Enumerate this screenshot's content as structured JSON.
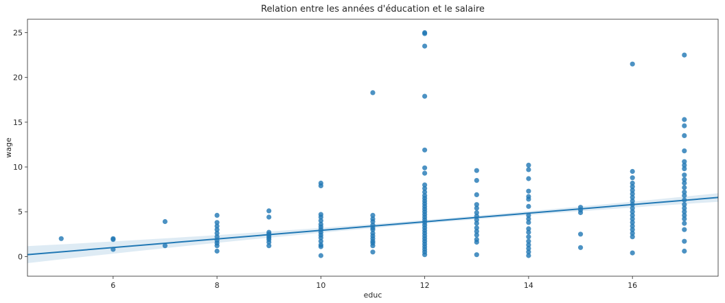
{
  "chart_data": {
    "type": "scatter",
    "title": "Relation entre les années d'éducation et le salaire",
    "xlabel": "educ",
    "ylabel": "wage",
    "xlim": [
      4.35,
      17.65
    ],
    "ylim": [
      -2.2,
      26.5
    ],
    "xticks": [
      6,
      8,
      10,
      12,
      14,
      16
    ],
    "yticks": [
      0,
      5,
      10,
      15,
      20,
      25
    ],
    "grid": false,
    "legend": "none",
    "point_color": "#1f77b4",
    "regression": {
      "intercept": -1.88,
      "slope": 0.48,
      "ci_halfwidth_edge": 0.95,
      "ci_halfwidth_center": 0.2,
      "x_mean": 12.6
    },
    "points": [
      [
        5,
        2.0
      ],
      [
        6,
        2.0
      ],
      [
        6,
        1.9
      ],
      [
        6,
        0.8
      ],
      [
        7,
        3.9
      ],
      [
        7,
        1.2
      ],
      [
        8,
        4.6
      ],
      [
        8,
        3.8
      ],
      [
        8,
        3.4
      ],
      [
        8,
        3.0
      ],
      [
        8,
        2.6
      ],
      [
        8,
        2.2
      ],
      [
        8,
        1.8
      ],
      [
        8,
        1.5
      ],
      [
        8,
        1.2
      ],
      [
        8,
        0.6
      ],
      [
        9,
        5.1
      ],
      [
        9,
        4.4
      ],
      [
        9,
        2.7
      ],
      [
        9,
        2.5
      ],
      [
        9,
        2.3
      ],
      [
        9,
        2.1
      ],
      [
        9,
        1.9
      ],
      [
        9,
        1.6
      ],
      [
        9,
        1.2
      ],
      [
        10,
        8.2
      ],
      [
        10,
        7.9
      ],
      [
        10,
        4.7
      ],
      [
        10,
        4.4
      ],
      [
        10,
        4.0
      ],
      [
        10,
        3.6
      ],
      [
        10,
        3.3
      ],
      [
        10,
        3.0
      ],
      [
        10,
        2.7
      ],
      [
        10,
        2.4
      ],
      [
        10,
        2.1
      ],
      [
        10,
        1.7
      ],
      [
        10,
        1.3
      ],
      [
        10,
        1.1
      ],
      [
        10,
        0.1
      ],
      [
        11,
        18.3
      ],
      [
        11,
        4.6
      ],
      [
        11,
        4.2
      ],
      [
        11,
        3.9
      ],
      [
        11,
        3.5
      ],
      [
        11,
        3.2
      ],
      [
        11,
        3.0
      ],
      [
        11,
        2.6
      ],
      [
        11,
        2.3
      ],
      [
        11,
        2.0
      ],
      [
        11,
        1.7
      ],
      [
        11,
        1.5
      ],
      [
        11,
        1.2
      ],
      [
        11,
        0.5
      ],
      [
        12,
        25.0
      ],
      [
        12,
        24.9
      ],
      [
        12,
        23.5
      ],
      [
        12,
        17.9
      ],
      [
        12,
        11.9
      ],
      [
        12,
        9.9
      ],
      [
        12,
        9.3
      ],
      [
        12,
        8.0
      ],
      [
        12,
        7.6
      ],
      [
        12,
        7.2
      ],
      [
        12,
        6.8
      ],
      [
        12,
        6.5
      ],
      [
        12,
        6.2
      ],
      [
        12,
        5.9
      ],
      [
        12,
        5.6
      ],
      [
        12,
        5.3
      ],
      [
        12,
        5.0
      ],
      [
        12,
        4.7
      ],
      [
        12,
        4.4
      ],
      [
        12,
        4.1
      ],
      [
        12,
        3.8
      ],
      [
        12,
        3.5
      ],
      [
        12,
        3.2
      ],
      [
        12,
        2.9
      ],
      [
        12,
        2.6
      ],
      [
        12,
        2.3
      ],
      [
        12,
        2.0
      ],
      [
        12,
        1.7
      ],
      [
        12,
        1.4
      ],
      [
        12,
        1.1
      ],
      [
        12,
        0.8
      ],
      [
        12,
        0.5
      ],
      [
        12,
        0.2
      ],
      [
        13,
        9.6
      ],
      [
        13,
        8.5
      ],
      [
        13,
        6.9
      ],
      [
        13,
        5.8
      ],
      [
        13,
        5.4
      ],
      [
        13,
        4.9
      ],
      [
        13,
        4.5
      ],
      [
        13,
        4.1
      ],
      [
        13,
        3.7
      ],
      [
        13,
        3.2
      ],
      [
        13,
        2.8
      ],
      [
        13,
        2.4
      ],
      [
        13,
        1.9
      ],
      [
        13,
        1.6
      ],
      [
        13,
        0.2
      ],
      [
        14,
        10.2
      ],
      [
        14,
        9.7
      ],
      [
        14,
        8.7
      ],
      [
        14,
        7.3
      ],
      [
        14,
        6.7
      ],
      [
        14,
        6.4
      ],
      [
        14,
        5.6
      ],
      [
        14,
        4.6
      ],
      [
        14,
        4.2
      ],
      [
        14,
        3.8
      ],
      [
        14,
        3.1
      ],
      [
        14,
        2.7
      ],
      [
        14,
        2.2
      ],
      [
        14,
        1.7
      ],
      [
        14,
        1.3
      ],
      [
        14,
        0.9
      ],
      [
        14,
        0.5
      ],
      [
        14,
        0.1
      ],
      [
        15,
        5.5
      ],
      [
        15,
        5.2
      ],
      [
        15,
        4.9
      ],
      [
        15,
        2.5
      ],
      [
        15,
        1.0
      ],
      [
        16,
        21.5
      ],
      [
        16,
        9.5
      ],
      [
        16,
        8.8
      ],
      [
        16,
        8.2
      ],
      [
        16,
        7.8
      ],
      [
        16,
        7.4
      ],
      [
        16,
        7.0
      ],
      [
        16,
        6.6
      ],
      [
        16,
        6.2
      ],
      [
        16,
        5.8
      ],
      [
        16,
        5.4
      ],
      [
        16,
        5.0
      ],
      [
        16,
        4.6
      ],
      [
        16,
        4.2
      ],
      [
        16,
        3.8
      ],
      [
        16,
        3.4
      ],
      [
        16,
        3.0
      ],
      [
        16,
        2.6
      ],
      [
        16,
        2.2
      ],
      [
        16,
        0.4
      ],
      [
        17,
        22.5
      ],
      [
        17,
        15.3
      ],
      [
        17,
        14.6
      ],
      [
        17,
        13.5
      ],
      [
        17,
        11.8
      ],
      [
        17,
        10.6
      ],
      [
        17,
        10.2
      ],
      [
        17,
        9.8
      ],
      [
        17,
        9.1
      ],
      [
        17,
        8.6
      ],
      [
        17,
        8.2
      ],
      [
        17,
        7.7
      ],
      [
        17,
        7.2
      ],
      [
        17,
        6.8
      ],
      [
        17,
        6.3
      ],
      [
        17,
        5.8
      ],
      [
        17,
        5.4
      ],
      [
        17,
        5.0
      ],
      [
        17,
        4.6
      ],
      [
        17,
        4.2
      ],
      [
        17,
        3.7
      ],
      [
        17,
        3.0
      ],
      [
        17,
        1.7
      ],
      [
        17,
        0.6
      ]
    ]
  }
}
